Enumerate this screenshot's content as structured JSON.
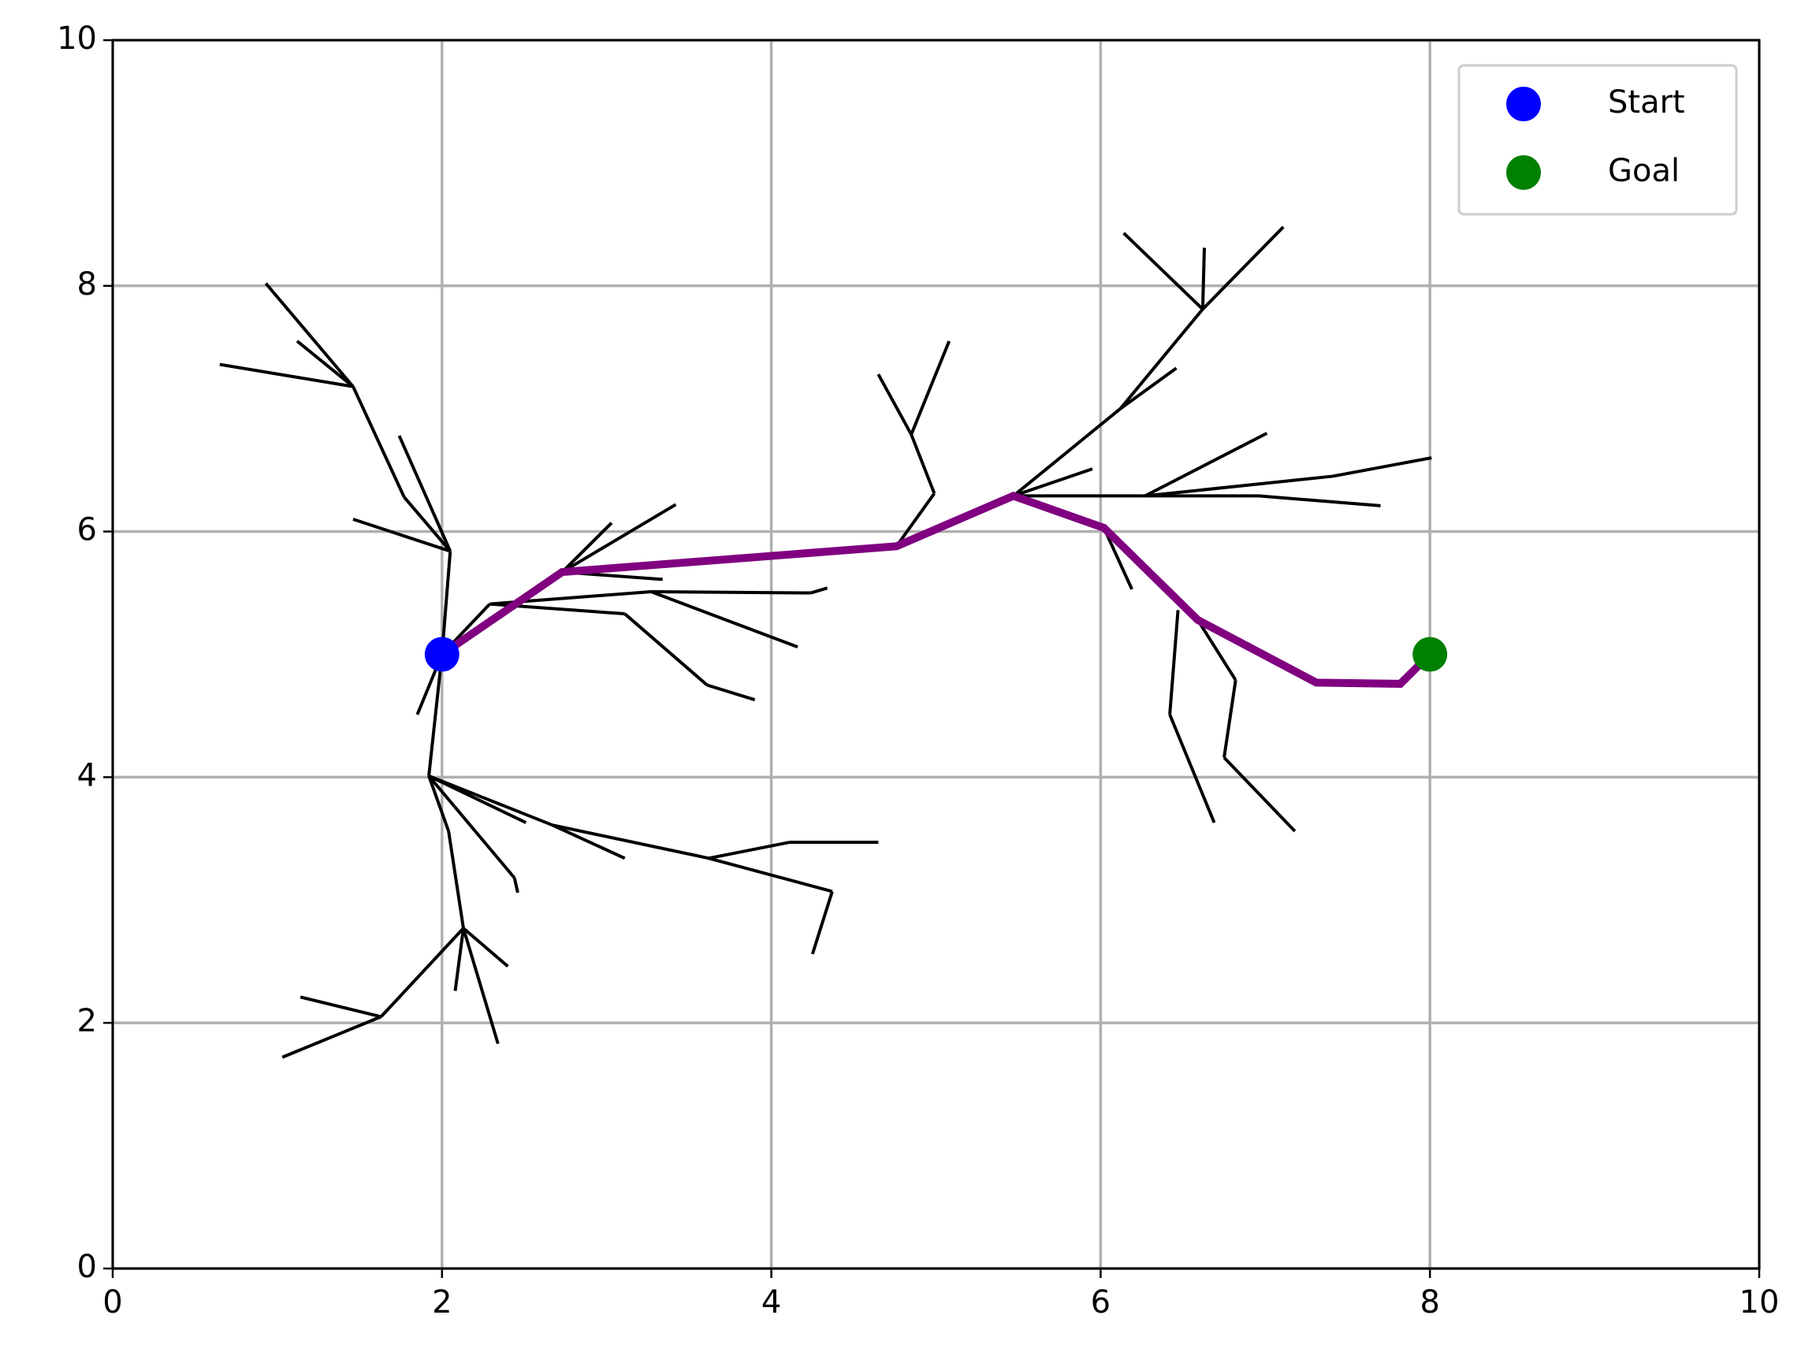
{
  "chart_data": {
    "type": "line",
    "xlim": [
      0,
      10
    ],
    "ylim": [
      0,
      10
    ],
    "xticks": [
      0,
      2,
      4,
      6,
      8,
      10
    ],
    "yticks": [
      0,
      2,
      4,
      6,
      8,
      10
    ],
    "grid": true,
    "legend": "upper right",
    "edge_color": "#000000",
    "edges": [
      {
        "x": [
          2,
          2.05
        ],
        "y": [
          5,
          5.84
        ]
      },
      {
        "x": [
          2.05,
          1.46
        ],
        "y": [
          5.84,
          6.1
        ]
      },
      {
        "x": [
          2.05,
          1.74
        ],
        "y": [
          5.84,
          6.78
        ]
      },
      {
        "x": [
          2.05,
          1.77
        ],
        "y": [
          5.84,
          6.28
        ]
      },
      {
        "x": [
          1.77,
          1.46
        ],
        "y": [
          6.28,
          7.18
        ]
      },
      {
        "x": [
          1.46,
          0.65
        ],
        "y": [
          7.18,
          7.36
        ]
      },
      {
        "x": [
          1.46,
          0.93
        ],
        "y": [
          7.18,
          8.02
        ]
      },
      {
        "x": [
          1.46,
          1.12
        ],
        "y": [
          7.18,
          7.55
        ]
      },
      {
        "x": [
          2,
          1.85
        ],
        "y": [
          5,
          4.51
        ]
      },
      {
        "x": [
          2,
          1.92
        ],
        "y": [
          5,
          4.01
        ]
      },
      {
        "x": [
          1.92,
          2.51
        ],
        "y": [
          4.01,
          3.63
        ]
      },
      {
        "x": [
          1.92,
          2.44
        ],
        "y": [
          4.01,
          3.18
        ]
      },
      {
        "x": [
          2.44,
          2.46
        ],
        "y": [
          3.18,
          3.06
        ]
      },
      {
        "x": [
          1.92,
          2.67
        ],
        "y": [
          4.01,
          3.61
        ]
      },
      {
        "x": [
          2.67,
          3.11
        ],
        "y": [
          3.61,
          3.34
        ]
      },
      {
        "x": [
          2.67,
          3.62
        ],
        "y": [
          3.61,
          3.34
        ]
      },
      {
        "x": [
          3.62,
          4.11
        ],
        "y": [
          3.34,
          3.47
        ]
      },
      {
        "x": [
          4.11,
          4.65
        ],
        "y": [
          3.47,
          3.47
        ]
      },
      {
        "x": [
          3.62,
          4.37
        ],
        "y": [
          3.34,
          3.07
        ]
      },
      {
        "x": [
          4.37,
          4.25
        ],
        "y": [
          3.07,
          2.56
        ]
      },
      {
        "x": [
          1.92,
          2.04
        ],
        "y": [
          4.01,
          3.56
        ]
      },
      {
        "x": [
          2.04,
          2.13
        ],
        "y": [
          3.56,
          2.77
        ]
      },
      {
        "x": [
          2.13,
          2.4
        ],
        "y": [
          2.77,
          2.46
        ]
      },
      {
        "x": [
          2.13,
          2.34
        ],
        "y": [
          2.77,
          1.83
        ]
      },
      {
        "x": [
          2.13,
          2.08
        ],
        "y": [
          2.77,
          2.26
        ]
      },
      {
        "x": [
          2.13,
          1.63
        ],
        "y": [
          2.77,
          2.05
        ]
      },
      {
        "x": [
          1.63,
          1.14
        ],
        "y": [
          2.05,
          2.21
        ]
      },
      {
        "x": [
          1.63,
          1.03
        ],
        "y": [
          2.05,
          1.72
        ]
      },
      {
        "x": [
          2,
          2.29
        ],
        "y": [
          5,
          5.41
        ]
      },
      {
        "x": [
          2.29,
          3.11
        ],
        "y": [
          5.41,
          5.33
        ]
      },
      {
        "x": [
          3.11,
          3.61
        ],
        "y": [
          5.33,
          4.75
        ]
      },
      {
        "x": [
          3.61,
          3.9
        ],
        "y": [
          4.75,
          4.63
        ]
      },
      {
        "x": [
          2.29,
          3.27
        ],
        "y": [
          5.41,
          5.51
        ]
      },
      {
        "x": [
          3.27,
          4.16
        ],
        "y": [
          5.51,
          5.06
        ]
      },
      {
        "x": [
          3.27,
          4.24
        ],
        "y": [
          5.51,
          5.5
        ]
      },
      {
        "x": [
          4.24,
          4.34
        ],
        "y": [
          5.5,
          5.54
        ]
      },
      {
        "x": [
          2.73,
          3.03
        ],
        "y": [
          5.67,
          6.07
        ]
      },
      {
        "x": [
          2.73,
          3.42
        ],
        "y": [
          5.67,
          6.22
        ]
      },
      {
        "x": [
          2.73,
          3.34
        ],
        "y": [
          5.67,
          5.61
        ]
      },
      {
        "x": [
          4.76,
          4.99
        ],
        "y": [
          5.88,
          6.31
        ]
      },
      {
        "x": [
          4.99,
          4.85
        ],
        "y": [
          6.31,
          6.79
        ]
      },
      {
        "x": [
          4.85,
          4.65
        ],
        "y": [
          6.79,
          7.28
        ]
      },
      {
        "x": [
          4.85,
          5.08
        ],
        "y": [
          6.79,
          7.55
        ]
      },
      {
        "x": [
          5.47,
          5.95
        ],
        "y": [
          6.29,
          6.51
        ]
      },
      {
        "x": [
          5.47,
          6.12
        ],
        "y": [
          6.29,
          7.0
        ]
      },
      {
        "x": [
          6.12,
          6.46
        ],
        "y": [
          7.0,
          7.33
        ]
      },
      {
        "x": [
          6.12,
          6.62
        ],
        "y": [
          7.0,
          7.81
        ]
      },
      {
        "x": [
          6.62,
          6.14
        ],
        "y": [
          7.81,
          8.43
        ]
      },
      {
        "x": [
          6.62,
          6.63
        ],
        "y": [
          7.81,
          8.31
        ]
      },
      {
        "x": [
          6.62,
          7.11
        ],
        "y": [
          7.81,
          8.48
        ]
      },
      {
        "x": [
          5.47,
          6.27
        ],
        "y": [
          6.29,
          6.29
        ]
      },
      {
        "x": [
          6.27,
          7.01
        ],
        "y": [
          6.29,
          6.8
        ]
      },
      {
        "x": [
          6.27,
          7.41
        ],
        "y": [
          6.29,
          6.45
        ]
      },
      {
        "x": [
          7.41,
          8.01
        ],
        "y": [
          6.45,
          6.6
        ]
      },
      {
        "x": [
          6.27,
          6.96
        ],
        "y": [
          6.29,
          6.29
        ]
      },
      {
        "x": [
          6.96,
          7.7
        ],
        "y": [
          6.29,
          6.21
        ]
      },
      {
        "x": [
          6.02,
          6.19
        ],
        "y": [
          6.03,
          5.53
        ]
      },
      {
        "x": [
          6.47,
          6.42
        ],
        "y": [
          5.36,
          4.51
        ]
      },
      {
        "x": [
          6.42,
          6.69
        ],
        "y": [
          4.51,
          3.63
        ]
      },
      {
        "x": [
          6.59,
          6.82
        ],
        "y": [
          5.28,
          4.79
        ]
      },
      {
        "x": [
          6.82,
          6.75
        ],
        "y": [
          4.79,
          4.16
        ]
      },
      {
        "x": [
          6.75,
          7.18
        ],
        "y": [
          4.16,
          3.56
        ]
      }
    ],
    "path": {
      "color": "#800080",
      "x": [
        2,
        2.73,
        4.76,
        5.47,
        6.02,
        6.59,
        7.31,
        7.82,
        8.0
      ],
      "y": [
        5.0,
        5.67,
        5.88,
        6.29,
        6.03,
        5.28,
        4.77,
        4.76,
        5.0
      ]
    },
    "series": [
      {
        "name": "Start",
        "color": "#0000ff",
        "x": [
          2
        ],
        "y": [
          5
        ]
      },
      {
        "name": "Goal",
        "color": "#008000",
        "x": [
          8
        ],
        "y": [
          5
        ]
      }
    ]
  }
}
